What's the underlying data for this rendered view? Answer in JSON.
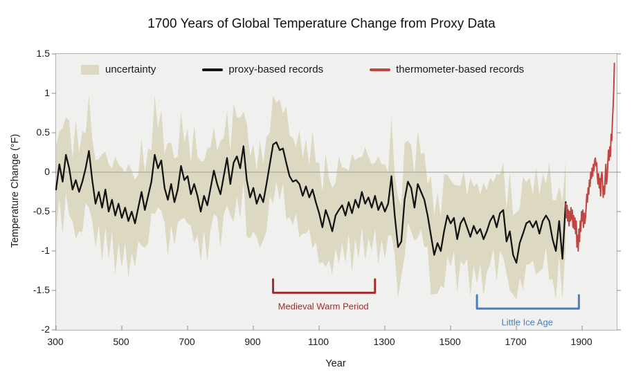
{
  "title": "1700 Years of Global Temperature Change from Proxy Data",
  "legend": {
    "items": [
      {
        "label": "uncertainty",
        "swatch": "patch",
        "color": "#ddd8c2"
      },
      {
        "label": "proxy-based records",
        "swatch": "line",
        "color": "#141414"
      },
      {
        "label": "thermometer-based records",
        "swatch": "line",
        "color": "#bf4643"
      }
    ]
  },
  "axes": {
    "x": {
      "label": "Year",
      "tick_values": [
        300,
        500,
        700,
        900,
        1100,
        1300,
        1500,
        1700,
        1900
      ],
      "tick_labels": [
        "300",
        "500",
        "700",
        "900",
        "1100",
        "1300",
        "1500",
        "1700",
        "1900"
      ]
    },
    "y": {
      "label": "Temperature Change (°F)",
      "tick_values": [
        1.5,
        1,
        0.5,
        0,
        -0.5,
        -1,
        -1.5,
        -2
      ],
      "tick_labels": [
        "1.5",
        "1",
        "0.5",
        "0",
        "-0.5",
        "-1",
        "-1.5",
        "-2"
      ]
    }
  },
  "annotations": [
    {
      "label": "Medieval Warm Period",
      "year_start": 960,
      "year_end": 1270,
      "bar_value": -1.53,
      "tick_value": -1.36,
      "label_value": -1.71,
      "color": "#a02c2e"
    },
    {
      "label": "Little Ice Age",
      "year_start": 1580,
      "year_end": 1890,
      "bar_value": -1.73,
      "tick_value": -1.56,
      "label_value": -1.91,
      "color": "#4b80bd"
    }
  ],
  "colors": {
    "plot_background": "#f0f0ee",
    "frame": "#b3b3b3",
    "zero_line": "#9a9a9a",
    "tick": "#8a8a8a",
    "uncertainty_band": "#ddd8c2",
    "proxy_line": "#141414",
    "thermometer_line": "#bf4643"
  },
  "chart_data": {
    "type": "line",
    "title": "1700 Years of Global Temperature Change from Proxy Data",
    "xlabel": "Year",
    "ylabel": "Temperature Change (°F)",
    "xlim": [
      300,
      2005
    ],
    "ylim": [
      -2,
      1.5
    ],
    "grid": "horizontal zero line only",
    "legend_position": "top inside",
    "series": [
      {
        "name": "proxy-based records",
        "start_year": 300,
        "step_years": 10,
        "values": [
          -0.22,
          0.1,
          -0.12,
          0.22,
          0.05,
          -0.22,
          -0.1,
          -0.25,
          -0.12,
          0.05,
          0.27,
          -0.1,
          -0.4,
          -0.25,
          -0.45,
          -0.22,
          -0.5,
          -0.35,
          -0.55,
          -0.4,
          -0.58,
          -0.45,
          -0.62,
          -0.5,
          -0.65,
          -0.45,
          -0.25,
          -0.48,
          -0.3,
          -0.12,
          0.22,
          0.05,
          0.15,
          -0.2,
          -0.35,
          -0.15,
          -0.38,
          -0.22,
          0.08,
          -0.1,
          -0.05,
          -0.28,
          -0.15,
          -0.3,
          -0.5,
          -0.3,
          -0.42,
          -0.2,
          0.02,
          -0.15,
          -0.28,
          -0.05,
          0.18,
          -0.15,
          0.12,
          0.2,
          0.05,
          0.33,
          -0.1,
          -0.32,
          -0.2,
          -0.4,
          -0.28,
          -0.38,
          -0.15,
          0.1,
          0.35,
          0.38,
          0.28,
          0.3,
          0.12,
          -0.05,
          -0.12,
          -0.1,
          -0.15,
          -0.3,
          -0.18,
          -0.32,
          -0.22,
          -0.38,
          -0.52,
          -0.7,
          -0.48,
          -0.6,
          -0.75,
          -0.55,
          -0.48,
          -0.42,
          -0.55,
          -0.38,
          -0.52,
          -0.35,
          -0.45,
          -0.25,
          -0.4,
          -0.32,
          -0.45,
          -0.3,
          -0.48,
          -0.38,
          -0.5,
          -0.4,
          -0.05,
          -0.55,
          -0.95,
          -0.88,
          -0.35,
          -0.12,
          -0.2,
          -0.45,
          -0.15,
          -0.25,
          -0.35,
          -0.55,
          -0.8,
          -1.05,
          -0.9,
          -1.0,
          -0.75,
          -0.55,
          -0.65,
          -0.58,
          -0.85,
          -0.65,
          -0.58,
          -0.7,
          -0.82,
          -0.68,
          -0.78,
          -0.72,
          -0.85,
          -0.75,
          -0.62,
          -0.55,
          -0.7,
          -0.52,
          -0.48,
          -0.88,
          -0.75,
          -1.05,
          -1.15,
          -0.9,
          -0.78,
          -0.65,
          -0.62,
          -0.7,
          -0.62,
          -0.78,
          -0.62,
          -0.55,
          -0.62,
          -0.85,
          -1.0,
          -0.62,
          -1.1,
          -0.38
        ]
      },
      {
        "name": "thermometer-based records",
        "start_year": 1850,
        "step_years": 2,
        "values": [
          -0.4,
          -0.58,
          -0.42,
          -0.62,
          -0.48,
          -0.68,
          -0.5,
          -0.62,
          -0.45,
          -0.6,
          -0.48,
          -0.7,
          -0.55,
          -0.72,
          -0.58,
          -0.78,
          -0.62,
          -0.95,
          -0.8,
          -1.0,
          -0.72,
          -0.88,
          -0.62,
          -0.75,
          -0.5,
          -0.62,
          -0.48,
          -0.7,
          -0.52,
          -0.65,
          -0.58,
          -0.45,
          -0.28,
          -0.38,
          -0.2,
          -0.28,
          -0.1,
          -0.18,
          0.0,
          -0.08,
          0.05,
          -0.05,
          0.1,
          0.02,
          0.15,
          0.18,
          0.08,
          0.12,
          -0.05,
          -0.15,
          -0.02,
          -0.2,
          -0.08,
          -0.3,
          -0.05,
          0.0,
          -0.12,
          -0.32,
          -0.18,
          -0.28,
          -0.05,
          0.1,
          -0.15,
          -0.08,
          0.12,
          0.28,
          0.15,
          0.32,
          0.2,
          0.48,
          0.4,
          0.65,
          0.82,
          1.05,
          1.38
        ]
      }
    ],
    "uncertainty": {
      "applies_to": "proxy-based records",
      "clip": [
        -1.62,
        0.97
      ],
      "halfwidth": [
        0.55,
        0.42,
        0.68,
        0.48,
        0.6,
        0.4,
        0.75,
        0.5,
        0.64,
        0.44,
        0.72,
        0.52,
        0.55,
        0.42,
        0.68,
        0.48,
        0.6,
        0.4,
        0.75,
        0.5,
        0.64,
        0.44,
        0.72,
        0.52,
        0.55,
        0.42,
        0.68,
        0.48,
        0.6,
        0.4,
        0.75,
        0.5,
        0.64,
        0.44,
        0.72,
        0.52,
        0.55,
        0.42,
        0.68,
        0.48,
        0.6,
        0.4,
        0.75,
        0.5,
        0.64,
        0.44,
        0.72,
        0.52,
        0.55,
        0.42,
        0.68,
        0.48,
        0.6,
        0.4,
        0.75,
        0.5,
        0.64,
        0.44,
        0.72,
        0.52,
        0.55,
        0.42,
        0.68,
        0.48,
        0.6,
        0.4,
        0.75,
        0.5,
        0.64,
        0.44,
        0.72,
        0.52,
        0.55,
        0.42,
        0.68,
        0.48,
        0.6,
        0.4,
        0.75,
        0.5,
        0.64,
        0.44,
        0.72,
        0.52,
        0.55,
        0.42,
        0.68,
        0.48,
        0.6,
        0.4,
        0.75,
        0.5,
        0.64,
        0.44,
        0.72,
        0.52,
        0.55,
        0.42,
        0.68,
        0.48,
        0.6,
        0.4,
        0.75,
        0.5,
        0.64,
        0.44,
        0.72,
        0.52,
        0.55,
        0.42,
        0.68,
        0.48,
        0.6,
        0.4,
        0.75,
        0.5,
        0.64,
        0.44,
        0.72,
        0.52,
        0.55,
        0.42,
        0.68,
        0.48,
        0.6,
        0.4,
        0.75,
        0.5,
        0.64,
        0.44,
        0.72,
        0.52,
        0.55,
        0.42,
        0.68,
        0.48,
        0.6,
        0.4,
        0.75,
        0.5,
        0.64,
        0.44,
        0.72,
        0.52,
        0.55,
        0.42,
        0.68,
        0.48,
        0.6,
        0.4,
        0.75,
        0.5,
        0.64,
        0.44,
        0.72,
        0.52
      ]
    }
  }
}
